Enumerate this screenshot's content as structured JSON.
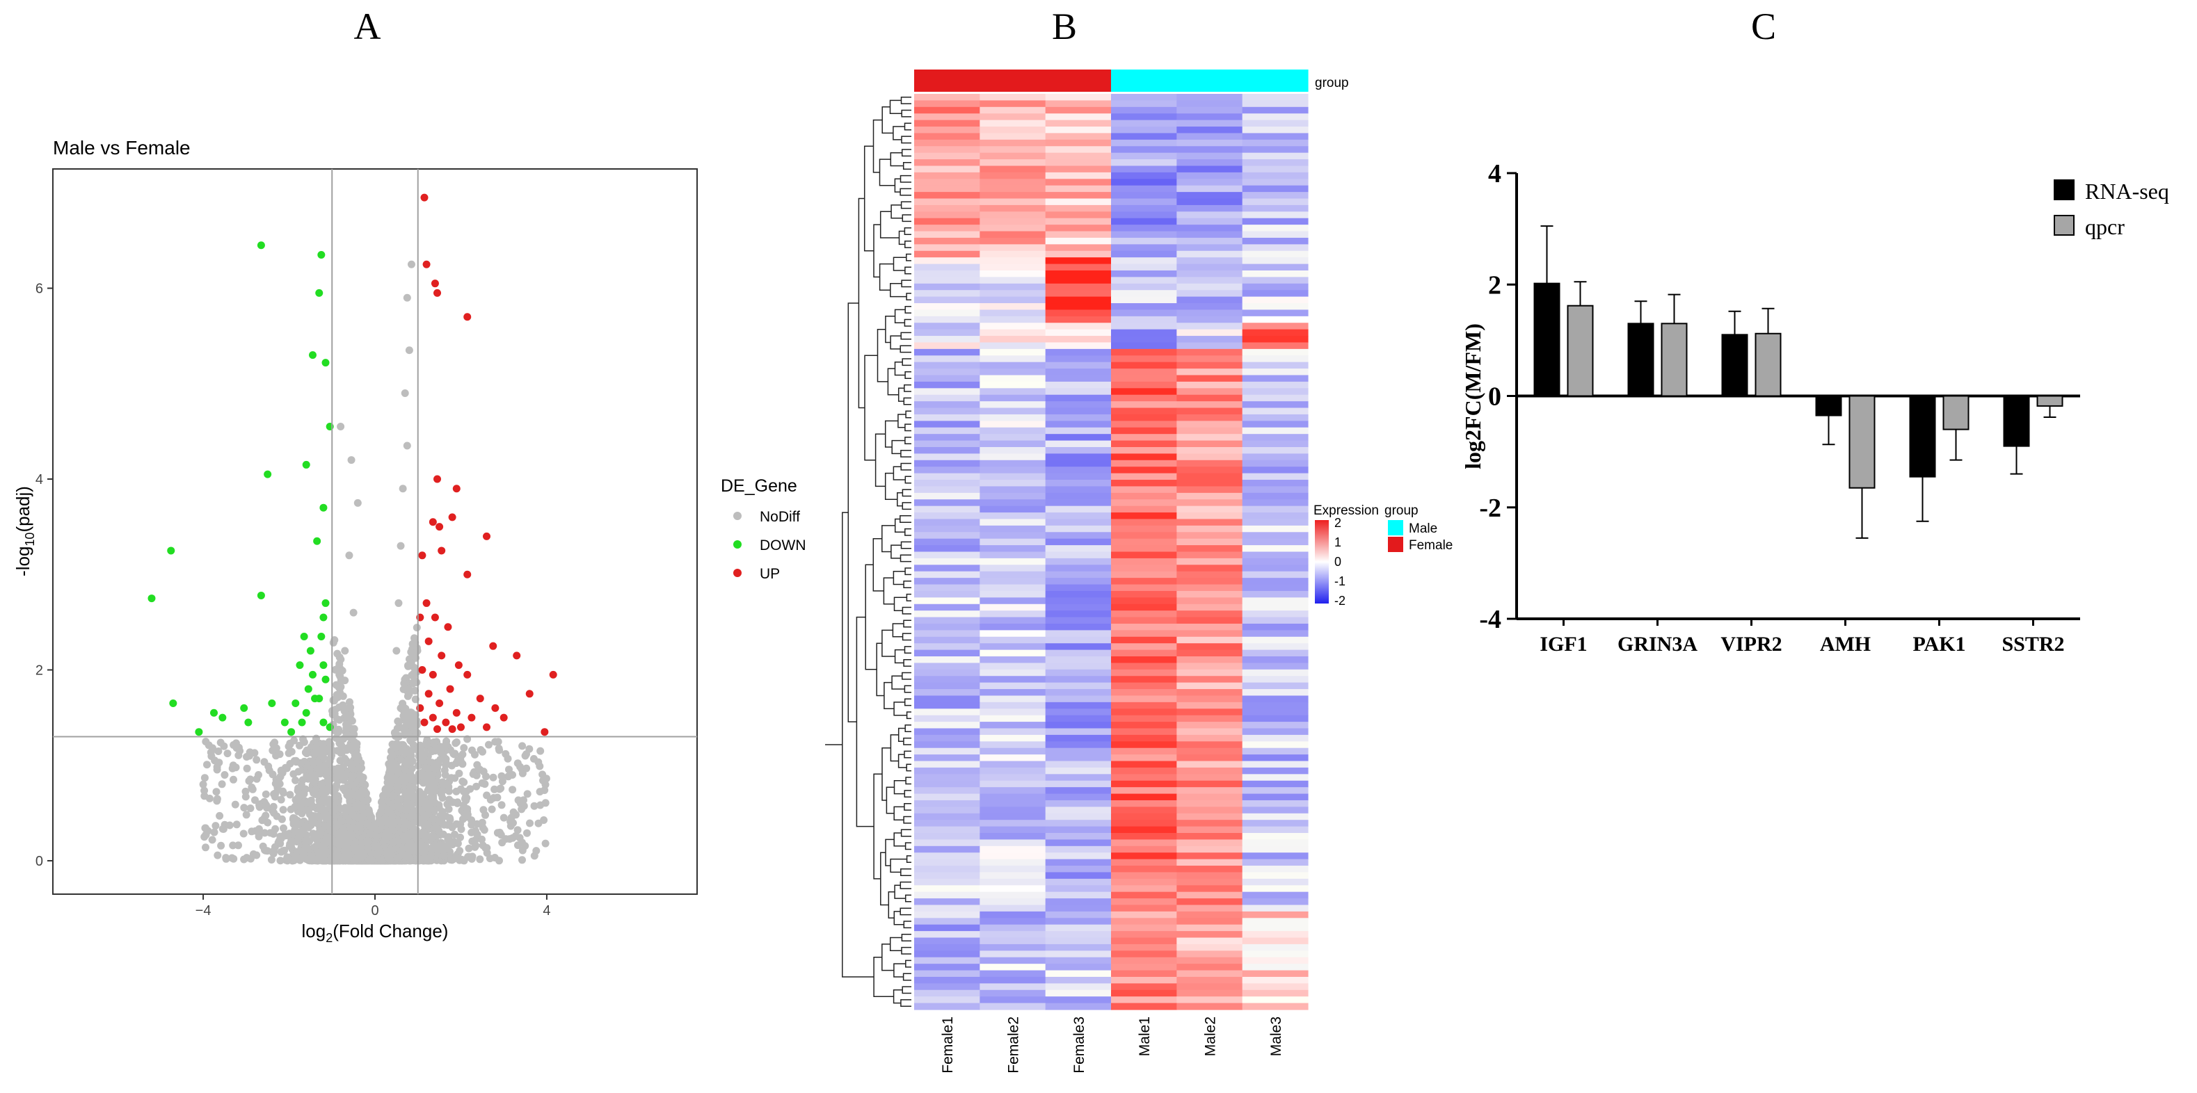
{
  "panel_labels": [
    "A",
    "B",
    "C"
  ],
  "chart_data": [
    {
      "type": "scatter",
      "title": "Male vs Female",
      "xlabel": "log2(Fold Change)",
      "ylabel": "-log10(padj)",
      "xlim": [
        -7.5,
        7.5
      ],
      "ylim": [
        -0.35,
        7.25
      ],
      "xticks": [
        -4,
        0,
        4
      ],
      "yticks": [
        0,
        2,
        4,
        6
      ],
      "thresholds": {
        "log2fc": [
          -1,
          1
        ],
        "neg_log10_padj": 1.3
      },
      "legend": {
        "title": "DE_Gene",
        "position": "right",
        "entries": [
          {
            "label": "NoDiff",
            "color": "#bdbdbd"
          },
          {
            "label": "DOWN",
            "color": "#22dd22"
          },
          {
            "label": "UP",
            "color": "#e02020"
          }
        ]
      },
      "down_points": [
        [
          -2.65,
          6.45
        ],
        [
          -1.25,
          6.35
        ],
        [
          -1.3,
          5.95
        ],
        [
          -1.45,
          5.3
        ],
        [
          -1.15,
          5.22
        ],
        [
          -1.05,
          4.55
        ],
        [
          -2.5,
          4.05
        ],
        [
          -1.6,
          4.15
        ],
        [
          -1.2,
          3.7
        ],
        [
          -1.35,
          3.35
        ],
        [
          -4.75,
          3.25
        ],
        [
          -5.2,
          2.75
        ],
        [
          -2.65,
          2.78
        ],
        [
          -1.15,
          2.7
        ],
        [
          -1.2,
          2.55
        ],
        [
          -1.65,
          2.35
        ],
        [
          -1.25,
          2.35
        ],
        [
          -1.5,
          2.2
        ],
        [
          -1.75,
          2.05
        ],
        [
          -1.2,
          2.05
        ],
        [
          -1.45,
          1.95
        ],
        [
          -1.15,
          1.9
        ],
        [
          -1.55,
          1.8
        ],
        [
          -1.3,
          1.7
        ],
        [
          -4.7,
          1.65
        ],
        [
          -3.75,
          1.55
        ],
        [
          -3.05,
          1.6
        ],
        [
          -2.4,
          1.65
        ],
        [
          -1.85,
          1.65
        ],
        [
          -1.4,
          1.7
        ],
        [
          -3.55,
          1.5
        ],
        [
          -2.95,
          1.45
        ],
        [
          -2.1,
          1.45
        ],
        [
          -1.7,
          1.45
        ],
        [
          -1.2,
          1.45
        ],
        [
          -4.1,
          1.35
        ],
        [
          -1.95,
          1.35
        ],
        [
          -1.05,
          1.4
        ],
        [
          -1.6,
          1.55
        ]
      ],
      "up_points": [
        [
          1.15,
          6.95
        ],
        [
          1.2,
          6.25
        ],
        [
          1.4,
          6.05
        ],
        [
          1.45,
          5.95
        ],
        [
          2.15,
          5.7
        ],
        [
          1.45,
          4.0
        ],
        [
          1.9,
          3.9
        ],
        [
          1.8,
          3.6
        ],
        [
          1.35,
          3.55
        ],
        [
          1.5,
          3.5
        ],
        [
          2.6,
          3.4
        ],
        [
          1.55,
          3.25
        ],
        [
          1.1,
          3.2
        ],
        [
          2.15,
          3.0
        ],
        [
          1.2,
          2.7
        ],
        [
          1.05,
          2.55
        ],
        [
          1.4,
          2.55
        ],
        [
          1.7,
          2.45
        ],
        [
          1.25,
          2.3
        ],
        [
          2.75,
          2.25
        ],
        [
          3.3,
          2.15
        ],
        [
          1.55,
          2.15
        ],
        [
          1.95,
          2.05
        ],
        [
          2.15,
          1.95
        ],
        [
          1.1,
          2.0
        ],
        [
          1.35,
          1.95
        ],
        [
          4.15,
          1.95
        ],
        [
          3.6,
          1.75
        ],
        [
          1.75,
          1.8
        ],
        [
          1.25,
          1.75
        ],
        [
          1.5,
          1.65
        ],
        [
          2.45,
          1.7
        ],
        [
          2.8,
          1.6
        ],
        [
          1.05,
          1.6
        ],
        [
          1.9,
          1.55
        ],
        [
          2.25,
          1.5
        ],
        [
          1.35,
          1.5
        ],
        [
          1.65,
          1.45
        ],
        [
          1.15,
          1.45
        ],
        [
          3.0,
          1.5
        ],
        [
          2.0,
          1.4
        ],
        [
          2.6,
          1.4
        ],
        [
          3.95,
          1.35
        ],
        [
          1.45,
          1.38
        ],
        [
          1.8,
          1.38
        ]
      ],
      "nodiff_points": [
        [
          -0.8,
          4.55
        ],
        [
          -0.55,
          4.2
        ],
        [
          -0.4,
          3.75
        ],
        [
          -0.6,
          3.2
        ],
        [
          -0.5,
          2.6
        ],
        [
          -0.7,
          2.2
        ],
        [
          0.85,
          6.25
        ],
        [
          0.75,
          5.9
        ],
        [
          0.8,
          5.35
        ],
        [
          0.7,
          4.9
        ],
        [
          0.75,
          4.35
        ],
        [
          0.65,
          3.9
        ],
        [
          0.6,
          3.3
        ],
        [
          0.55,
          2.7
        ],
        [
          0.5,
          2.2
        ],
        [
          -3.3,
          1.0
        ],
        [
          -2.9,
          0.55
        ],
        [
          -3.5,
          0.9
        ],
        [
          -4.0,
          0.8
        ],
        [
          3.5,
          1.1
        ],
        [
          3.2,
          0.9
        ],
        [
          2.9,
          0.75
        ],
        [
          3.55,
          0.7
        ],
        [
          3.85,
          1.15
        ],
        [
          -2.5,
          0.4
        ],
        [
          2.5,
          0.4
        ],
        [
          -1.8,
          0.3
        ],
        [
          1.8,
          0.35
        ]
      ]
    },
    {
      "type": "heatmap",
      "columns": [
        "Female1",
        "Female2",
        "Female3",
        "Male1",
        "Male2",
        "Male3"
      ],
      "annotation": {
        "label": "group",
        "groups": [
          "Female",
          "Female",
          "Female",
          "Male",
          "Male",
          "Male"
        ],
        "colors": {
          "Female": "#e31a1c",
          "Male": "#00ffff"
        }
      },
      "color_scale": {
        "min": -2,
        "max": 2,
        "ticks": [
          2,
          1,
          0,
          -1,
          -2
        ],
        "low": "#2020ee",
        "mid": "#ffffff",
        "high": "#ee2020"
      },
      "legend": {
        "scale_title": "Expression",
        "group_title": "group",
        "entries": [
          "Male",
          "Female"
        ]
      },
      "row_count": 140,
      "row_blocks": [
        {
          "rows": 25,
          "means": [
            0.9,
            0.75,
            0.6,
            -0.9,
            -0.8,
            -0.6
          ]
        },
        {
          "rows": 10,
          "means": [
            -0.35,
            -0.25,
            1.9,
            -0.55,
            -0.55,
            -0.45
          ]
        },
        {
          "rows": 4,
          "means": [
            -0.2,
            -0.1,
            0.55,
            -0.8,
            -0.3,
            1.3
          ]
        },
        {
          "rows": 85,
          "means": [
            -0.55,
            -0.45,
            -0.7,
            1.35,
            0.95,
            -0.55
          ]
        },
        {
          "rows": 16,
          "means": [
            -0.6,
            -0.5,
            -0.45,
            1.1,
            0.65,
            0.35
          ]
        }
      ]
    },
    {
      "type": "bar",
      "categories": [
        "IGF1",
        "GRIN3A",
        "VIPR2",
        "AMH",
        "PAK1",
        "SSTR2"
      ],
      "series": [
        {
          "name": "RNA-seq",
          "color": "#000000",
          "values": [
            2.02,
            1.3,
            1.1,
            -0.35,
            -1.45,
            -0.9
          ],
          "errors": [
            1.03,
            0.4,
            0.42,
            0.52,
            0.8,
            0.5
          ]
        },
        {
          "name": "qpcr",
          "color": "#a6a6a6",
          "values": [
            1.62,
            1.3,
            1.12,
            -1.65,
            -0.6,
            -0.18
          ],
          "errors": [
            0.43,
            0.52,
            0.45,
            0.9,
            0.55,
            0.2
          ]
        }
      ],
      "ylabel": "log2FC(M/FM)",
      "ylim": [
        -4,
        4
      ],
      "yticks": [
        4,
        2,
        0,
        -2,
        -4
      ],
      "legend_position": "top-right"
    }
  ]
}
